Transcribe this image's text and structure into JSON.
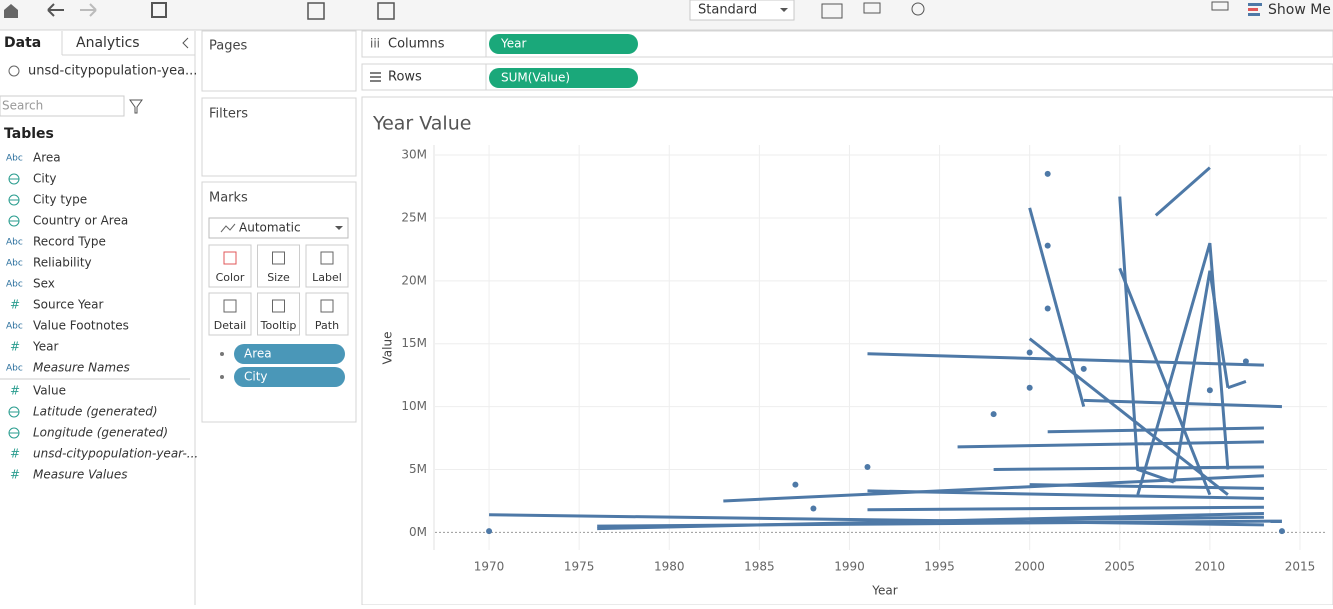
{
  "toolbar": {
    "view_mode": "Standard",
    "show_me": "Show Me"
  },
  "data_pane": {
    "tabs": [
      "Data",
      "Analytics"
    ],
    "datasource": "unsd-citypopulation-yea...",
    "search": "Search",
    "tables_header": "Tables",
    "fields": [
      {
        "icon": "Abc",
        "name": "Area",
        "italic": false
      },
      {
        "icon": "geo",
        "name": "City",
        "italic": false
      },
      {
        "icon": "geo",
        "name": "City type",
        "italic": false
      },
      {
        "icon": "geo",
        "name": "Country or Area",
        "italic": false
      },
      {
        "icon": "Abc",
        "name": "Record Type",
        "italic": false
      },
      {
        "icon": "Abc",
        "name": "Reliability",
        "italic": false
      },
      {
        "icon": "Abc",
        "name": "Sex",
        "italic": false
      },
      {
        "icon": "#",
        "name": "Source Year",
        "italic": false
      },
      {
        "icon": "Abc",
        "name": "Value Footnotes",
        "italic": false
      },
      {
        "icon": "#",
        "name": "Year",
        "italic": false
      },
      {
        "icon": "Abc",
        "name": "Measure Names",
        "italic": true
      }
    ],
    "measures": [
      {
        "icon": "#",
        "name": "Value",
        "italic": false
      },
      {
        "icon": "geo",
        "name": "Latitude (generated)",
        "italic": true
      },
      {
        "icon": "geo",
        "name": "Longitude (generated)",
        "italic": true
      },
      {
        "icon": "#",
        "name": "unsd-citypopulation-year-...",
        "italic": true
      },
      {
        "icon": "#",
        "name": "Measure Values",
        "italic": true
      }
    ]
  },
  "shelves": {
    "pages": "Pages",
    "filters": "Filters",
    "marks": "Marks",
    "mark_type": "Automatic",
    "mark_buttons": [
      "Color",
      "Size",
      "Label",
      "Detail",
      "Tooltip",
      "Path"
    ],
    "mark_pills": [
      "Area",
      "City"
    ],
    "columns": "Columns",
    "columns_pill": "Year",
    "rows": "Rows",
    "rows_pill": "SUM(Value)"
  },
  "chart_data": {
    "type": "line",
    "title": "Year Value",
    "x_label": "Year",
    "y_label": "Value",
    "xlim": [
      1967,
      2016.5
    ],
    "xticks": [
      1970,
      1975,
      1980,
      1985,
      1990,
      1995,
      2000,
      2005,
      2010,
      2015
    ],
    "ylim": [
      -1400000,
      30800000
    ],
    "yticks": [
      {
        "value": 0,
        "label": "0M"
      },
      {
        "value": 5000000,
        "label": "5M"
      },
      {
        "value": 10000000,
        "label": "10M"
      },
      {
        "value": 15000000,
        "label": "15M"
      },
      {
        "value": 20000000,
        "label": "20M"
      },
      {
        "value": 25000000,
        "label": "25M"
      },
      {
        "value": 30000000,
        "label": "30M"
      }
    ],
    "grid": true,
    "color": "#4e79a7",
    "series": [
      {
        "x": [
          1970,
          2013
        ],
        "values": [
          1400000,
          600000
        ]
      },
      {
        "x": [
          1976,
          2014
        ],
        "values": [
          500000,
          900000
        ]
      },
      {
        "x": [
          1976,
          2013
        ],
        "values": [
          300000,
          1500000
        ]
      },
      {
        "x": [
          1983,
          2013
        ],
        "values": [
          2500000,
          4500000
        ]
      },
      {
        "x": [
          1991,
          2013
        ],
        "values": [
          14200000,
          13300000
        ]
      },
      {
        "x": [
          1996,
          2013
        ],
        "values": [
          6800000,
          7200000
        ]
      },
      {
        "x": [
          2000,
          2003
        ],
        "values": [
          25800000,
          10000000
        ]
      },
      {
        "x": [
          2000,
          2011
        ],
        "values": [
          15400000,
          3000000
        ]
      },
      {
        "x": [
          2005,
          2006,
          2008
        ],
        "values": [
          26700000,
          5000000,
          4000000
        ]
      },
      {
        "x": [
          2005,
          2010
        ],
        "values": [
          21000000,
          3000000
        ]
      },
      {
        "x": [
          2007,
          2010
        ],
        "values": [
          25200000,
          29000000
        ]
      },
      {
        "x": [
          2006,
          2010,
          2011
        ],
        "values": [
          3000000,
          23000000,
          5000000
        ]
      },
      {
        "x": [
          2008,
          2010,
          2011
        ],
        "values": [
          4000000,
          20800000,
          11500000
        ]
      },
      {
        "x": [
          2011,
          2012
        ],
        "values": [
          11500000,
          12000000
        ]
      },
      {
        "x": [
          2003,
          2014
        ],
        "values": [
          10500000,
          10000000
        ]
      },
      {
        "x": [
          2001,
          2013
        ],
        "values": [
          8000000,
          8300000
        ]
      },
      {
        "x": [
          1998,
          2013
        ],
        "values": [
          5000000,
          5200000
        ]
      },
      {
        "x": [
          1991,
          2013
        ],
        "values": [
          3300000,
          2700000
        ]
      },
      {
        "x": [
          1991,
          2013
        ],
        "values": [
          1800000,
          2000000
        ]
      },
      {
        "x": [
          2000,
          2013
        ],
        "values": [
          1000000,
          1200000
        ]
      },
      {
        "x": [
          2000,
          2013
        ],
        "values": [
          3800000,
          3500000
        ]
      }
    ],
    "points": {
      "x": [
        1970,
        1987,
        1988,
        1991,
        1998,
        2000,
        2000,
        2001,
        2001,
        2001,
        2003,
        2012,
        2014,
        2010
      ],
      "values": [
        100000,
        3800000,
        1900000,
        5200000,
        9400000,
        14300000,
        11500000,
        28500000,
        22800000,
        17800000,
        13000000,
        13600000,
        100000,
        11300000
      ]
    }
  }
}
